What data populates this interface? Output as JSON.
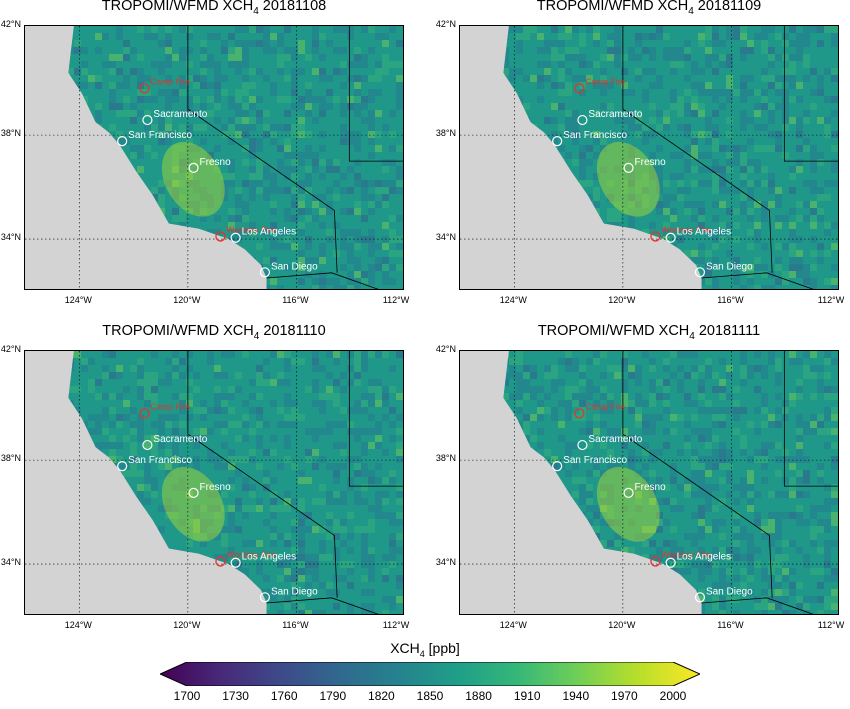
{
  "panels": [
    {
      "title_prefix": "TROPOMI/WFMD XCH",
      "title_sub": "4",
      "title_suffix": " 20181108"
    },
    {
      "title_prefix": "TROPOMI/WFMD XCH",
      "title_sub": "4",
      "title_suffix": " 20181109"
    },
    {
      "title_prefix": "TROPOMI/WFMD XCH",
      "title_sub": "4",
      "title_suffix": " 20181110"
    },
    {
      "title_prefix": "TROPOMI/WFMD XCH",
      "title_sub": "4",
      "title_suffix": " 20181111"
    }
  ],
  "lat_ticks": [
    "42°N",
    "38°N",
    "34°N"
  ],
  "lon_ticks": [
    "124°W",
    "120°W",
    "116°W",
    "112°W"
  ],
  "cities": [
    "Sacramento",
    "San Francisco",
    "Fresno",
    "Los Angeles",
    "San Diego"
  ],
  "fires": [
    "Camp Fire",
    "Woolsey Fire"
  ],
  "colorbar": {
    "label_prefix": "XCH",
    "label_sub": "4",
    "label_suffix": " [ppb]",
    "ticks": [
      "1700",
      "1730",
      "1760",
      "1790",
      "1820",
      "1850",
      "1880",
      "1910",
      "1940",
      "1970",
      "2000"
    ]
  },
  "colors": {
    "land": "#21918c",
    "ocean": "#d3d3d3",
    "fire_marker": "#e8322a",
    "city_marker": "#ffffff",
    "viridis": [
      "#440154",
      "#482878",
      "#3e4989",
      "#31688e",
      "#26828e",
      "#1f9e89",
      "#35b779",
      "#6ece58",
      "#b5de2b",
      "#fde725"
    ]
  }
}
